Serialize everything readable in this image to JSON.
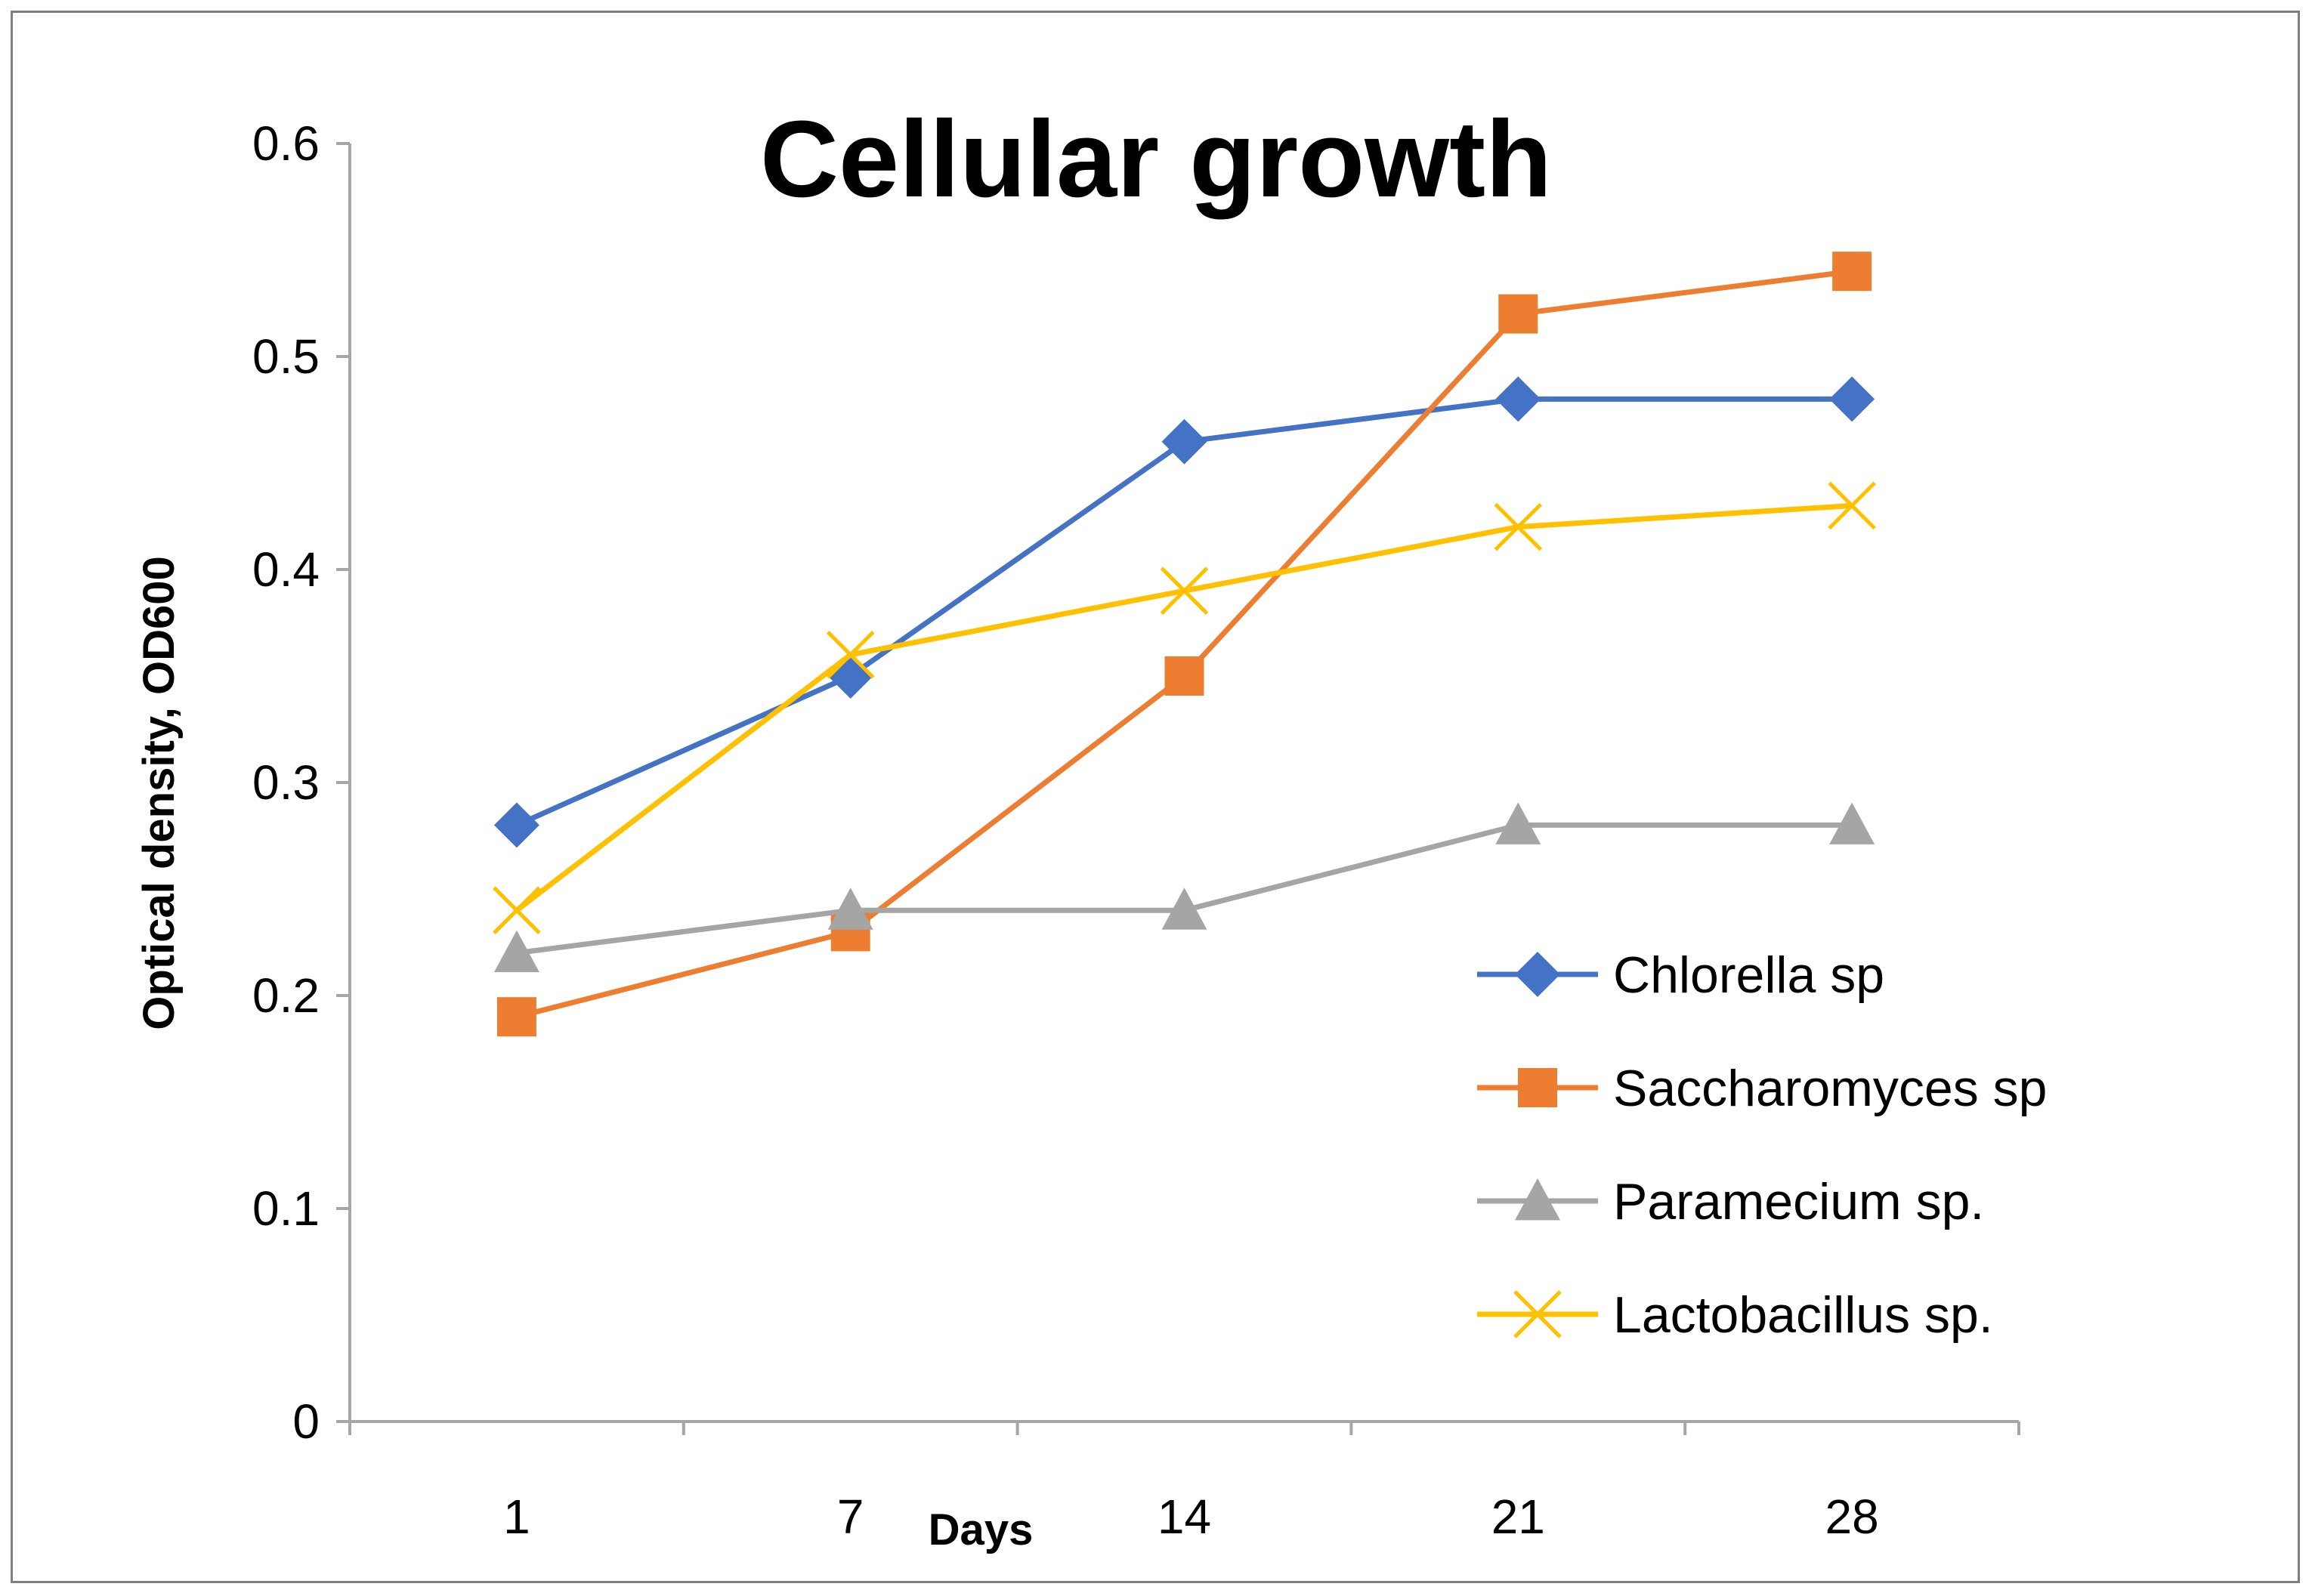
{
  "chart_data": {
    "type": "line",
    "title": "Cellular growth",
    "xlabel": "Days",
    "ylabel": "Optical density, OD600",
    "categories": [
      "1",
      "7",
      "14",
      "21",
      "28"
    ],
    "ylim": [
      0,
      0.6
    ],
    "yticks": [
      "0",
      "0.1",
      "0.2",
      "0.3",
      "0.4",
      "0.5",
      "0.6"
    ],
    "grid": false,
    "legend_position": "right",
    "series": [
      {
        "name": "Chlorella sp",
        "color": "#4472c4",
        "marker": "diamond",
        "values": [
          0.28,
          0.35,
          0.46,
          0.48,
          0.48
        ]
      },
      {
        "name": "Saccharomyces sp",
        "color": "#ed7d31",
        "marker": "square",
        "values": [
          0.19,
          0.23,
          0.35,
          0.52,
          0.54
        ]
      },
      {
        "name": "Paramecium sp.",
        "color": "#a5a5a5",
        "marker": "triangle",
        "values": [
          0.22,
          0.24,
          0.24,
          0.28,
          0.28
        ]
      },
      {
        "name": "Lactobacillus sp.",
        "color": "#ffc000",
        "marker": "x",
        "values": [
          0.24,
          0.36,
          0.39,
          0.42,
          0.43
        ]
      }
    ]
  }
}
